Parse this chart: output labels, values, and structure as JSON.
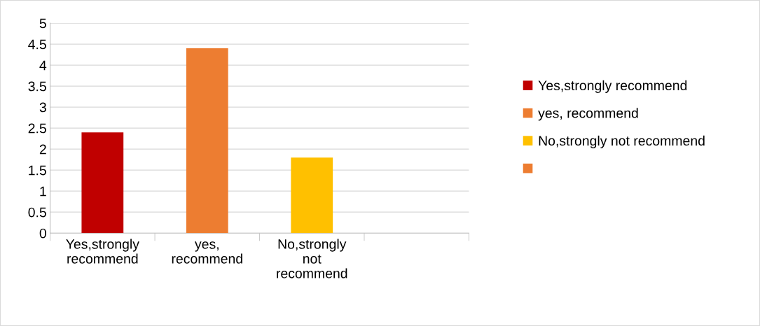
{
  "chart_data": {
    "type": "bar",
    "categories": [
      "Yes,strongly recommend",
      "yes, recommend",
      "No,strongly not recommend",
      null
    ],
    "series": [
      {
        "name": "Yes,strongly recommend",
        "color": "#c00000",
        "values": [
          2.4,
          null,
          null,
          null
        ]
      },
      {
        "name": "yes, recommend",
        "color": "#ed7d31",
        "values": [
          null,
          4.4,
          null,
          null
        ]
      },
      {
        "name": "No,strongly not recommend",
        "color": "#ffc000",
        "values": [
          null,
          null,
          1.8,
          null
        ]
      },
      {
        "color": "#ed7d31",
        "values": [
          null,
          null,
          null,
          null
        ]
      }
    ],
    "ylim": [
      0,
      5
    ],
    "yticks": [
      0,
      0.5,
      1,
      1.5,
      2,
      2.5,
      3,
      3.5,
      4,
      4.5,
      5
    ],
    "grid": "y",
    "legend": "right"
  }
}
